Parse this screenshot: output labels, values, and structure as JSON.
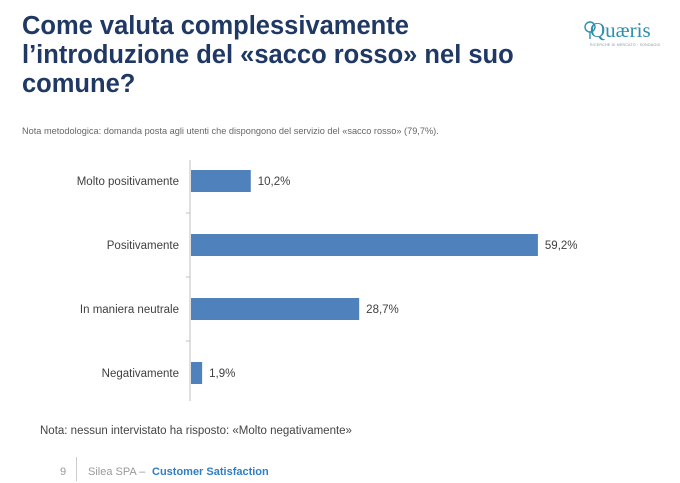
{
  "title": "Come valuta complessivamente l’introduzione del «sacco rosso» nel suo comune?",
  "logo": {
    "word": "Quæris",
    "tagline": "RICERCHE DI MERCATO · SONDAGGI"
  },
  "note_top": "Nota metodologica: domanda posta agli utenti che dispongono del servizio del «sacco rosso» (79,7%).",
  "note_bottom": "Nota: nessun intervistato ha risposto: «Molto negativamente»",
  "footer": {
    "page": "9",
    "company": "Silea SPA –",
    "section": "Customer Satisfaction"
  },
  "colors": {
    "bar": "#4f81bd",
    "title": "#1f3864"
  },
  "chart_data": {
    "type": "bar",
    "orientation": "horizontal",
    "categories": [
      "Molto positivamente",
      "Positivamente",
      "In maniera neutrale",
      "Negativamente"
    ],
    "values": [
      10.2,
      59.2,
      28.7,
      1.9
    ],
    "value_labels": [
      "10,2%",
      "59,2%",
      "28,7%",
      "1,9%"
    ],
    "xlim": [
      0,
      60
    ],
    "grid": false,
    "legend": "none"
  }
}
